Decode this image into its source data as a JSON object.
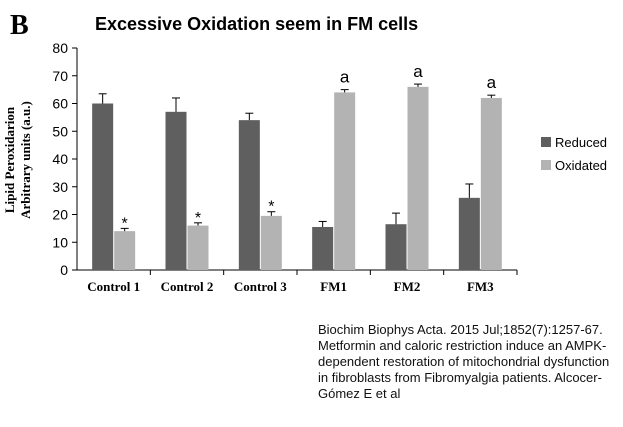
{
  "panel_letter": "B",
  "caption_lines": [
    "Biochim Biophys Acta. 2015 Jul;1852(7):1257-67.",
    "Metformin and caloric restriction induce an AMPK-",
    "dependent restoration of mitochondrial dysfunction",
    "in fibroblasts from Fibromyalgia patients. Alcocer-",
    "Gómez E et al"
  ],
  "colors": {
    "reduced": "#5f5f5f",
    "oxidated": "#b3b3b3",
    "axis": "#000000"
  },
  "chart_data": {
    "type": "bar",
    "title": "Excessive Oxidation seem in FM cells",
    "ylabel_lines": [
      "Lipid Peroxidarion",
      "Arbitrary units (a.u.)"
    ],
    "xlabel": "",
    "ylim": [
      0,
      80
    ],
    "yticks": [
      0,
      10,
      20,
      30,
      40,
      50,
      60,
      70,
      80
    ],
    "grid": false,
    "legend_position": "right",
    "categories": [
      "Control 1",
      "Control 2",
      "Control 3",
      "FM1",
      "FM2",
      "FM3"
    ],
    "series": [
      {
        "name": "Reduced",
        "values": [
          60,
          57,
          54,
          15.5,
          16.5,
          26
        ],
        "errors": [
          3.5,
          5,
          2.5,
          2,
          4,
          5
        ]
      },
      {
        "name": "Oxidated",
        "values": [
          14,
          16,
          19.5,
          64,
          66,
          62
        ],
        "errors": [
          1,
          1,
          1.5,
          1,
          1,
          1
        ]
      }
    ],
    "annotations": [
      "*",
      "*",
      "*",
      "a",
      "a",
      "a"
    ]
  }
}
